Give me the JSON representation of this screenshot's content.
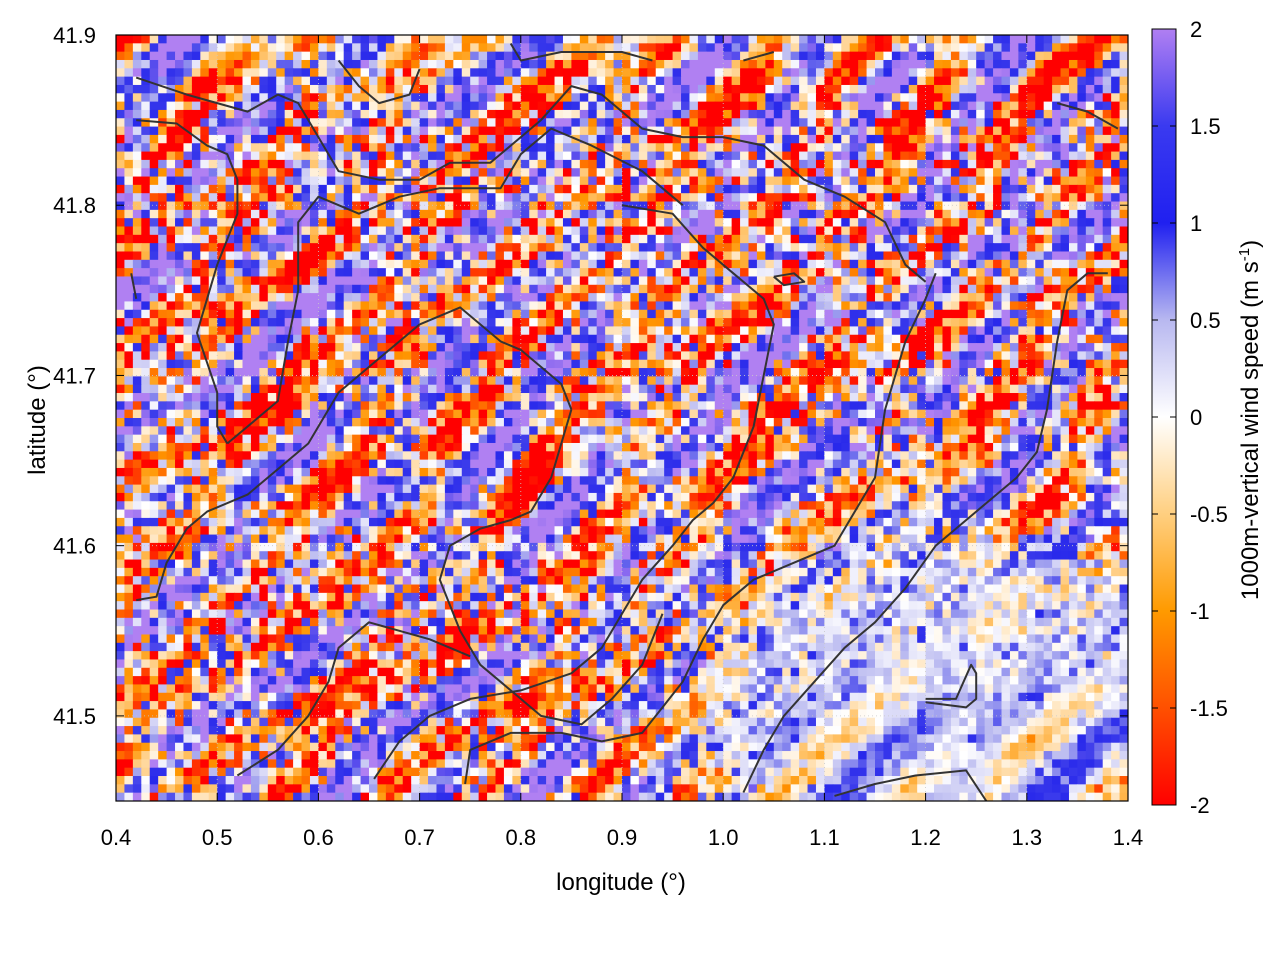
{
  "chart_data": {
    "type": "heatmap",
    "title": "",
    "xlabel": "longitude (°)",
    "ylabel": "latitude (°)",
    "xlim": [
      0.4,
      1.4
    ],
    "ylim": [
      41.45,
      41.9
    ],
    "x_ticks": [
      "0.4",
      "0.5",
      "0.6",
      "0.7",
      "0.8",
      "0.9",
      "1.0",
      "1.1",
      "1.2",
      "1.3",
      "1.4"
    ],
    "y_ticks": [
      "41.5",
      "41.6",
      "41.7",
      "41.8",
      "41.9"
    ],
    "grid": true,
    "colorbar": {
      "label_main": "1000m-vertical wind speed (m s",
      "label_sup": "-1",
      "label_close": ")",
      "range": [
        -2,
        2
      ],
      "ticks": [
        "-2",
        "-1.5",
        "-1",
        "-0.5",
        "0",
        "0.5",
        "1",
        "1.5",
        "2"
      ],
      "colormap": [
        "#ff0000",
        "#ff7a00",
        "#ffb000",
        "#ffe8b8",
        "#ffffff",
        "#c8c8f5",
        "#4848e8",
        "#0000ff",
        "#b080f0"
      ],
      "placement": "right"
    },
    "field_description": "high-resolution pixel field of vertical wind speed, strongly mixed positive and negative values in the north, weaker near-zero values in the southeast",
    "contours": {
      "color": "#333333",
      "description": "coastline / terrain outline polylines"
    }
  }
}
